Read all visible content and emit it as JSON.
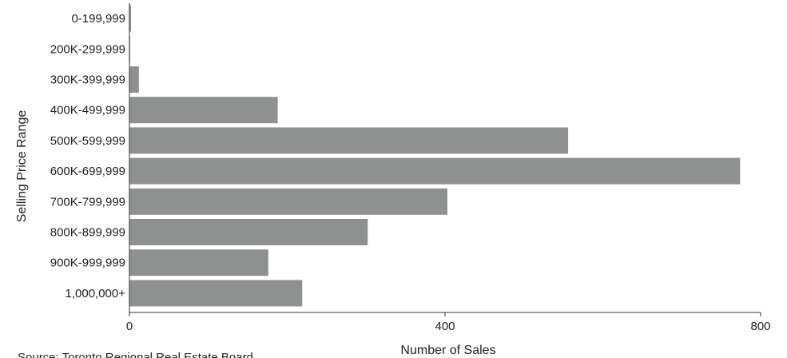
{
  "chart_data": {
    "type": "bar",
    "orientation": "horizontal",
    "categories": [
      "0-199,999",
      "200K-299,999",
      "300K-399,999",
      "400K-499,999",
      "500K-599,999",
      "600K-699,999",
      "700K-799,999",
      "800K-899,999",
      "900K-999,999",
      "1,000,000+"
    ],
    "values": [
      2,
      1,
      12,
      188,
      556,
      774,
      403,
      302,
      176,
      219
    ],
    "xlabel": "Number of Sales",
    "ylabel": "Selling Price Range",
    "xlim": [
      0,
      800
    ],
    "xticks": [
      "0",
      "400",
      "800"
    ],
    "grid": false,
    "legend": "none",
    "bar_color": "#8f9191",
    "axis_color": "#333333",
    "source": "Source: Toronto Regional Real Estate Board"
  }
}
